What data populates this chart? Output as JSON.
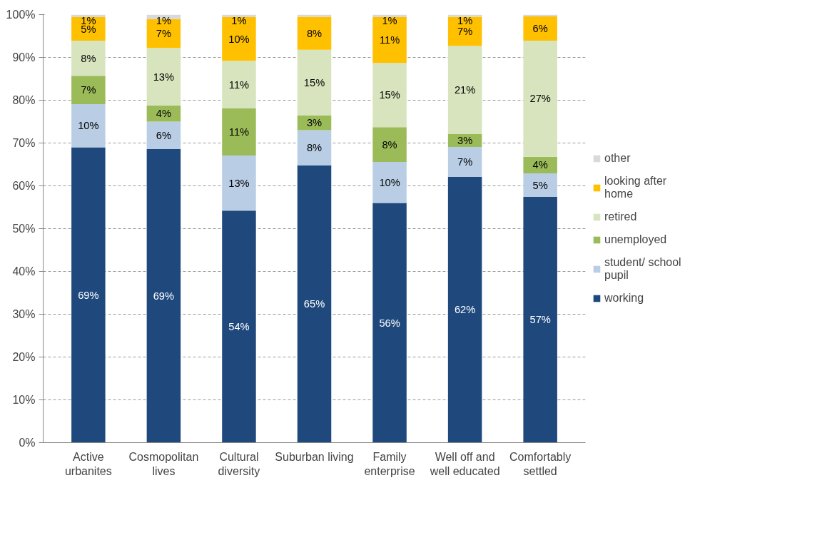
{
  "chart_data": {
    "type": "bar",
    "stacked": true,
    "categories": [
      "Active urbanites",
      "Cosmopolitan lives",
      "Cultural diversity",
      "Suburban living",
      "Family enterprise",
      "Well off and well educated",
      "Comfortably settled"
    ],
    "series": [
      {
        "name": "working",
        "color": "#1f497d",
        "values": [
          69.0,
          68.6,
          54.2,
          64.8,
          56.0,
          62.1,
          57.4
        ],
        "value_labels": [
          "69%",
          "69%",
          "54%",
          "65%",
          "56%",
          "62%",
          "57%"
        ]
      },
      {
        "name": "student/ school pupil",
        "color": "#b9cde5",
        "values": [
          10.1,
          6.4,
          12.9,
          8.2,
          9.6,
          7.0,
          5.5
        ],
        "value_labels": [
          "10%",
          "6%",
          "13%",
          "8%",
          "10%",
          "7%",
          "5%"
        ]
      },
      {
        "name": "unemployed",
        "color": "#9bbb59",
        "values": [
          6.6,
          3.8,
          11.0,
          3.4,
          8.1,
          3.0,
          3.9
        ],
        "value_labels": [
          "7%",
          "4%",
          "11%",
          "3%",
          "8%",
          "3%",
          "4%"
        ]
      },
      {
        "name": "retired",
        "color": "#d7e4bd",
        "values": [
          8.2,
          13.4,
          11.1,
          15.4,
          15.0,
          20.6,
          27.1
        ],
        "value_labels": [
          "8%",
          "13%",
          "11%",
          "15%",
          "15%",
          "21%",
          "27%"
        ]
      },
      {
        "name": "looking after home",
        "color": "#ffc000",
        "values": [
          5.5,
          6.7,
          10.2,
          7.7,
          10.7,
          6.8,
          5.7
        ],
        "value_labels": [
          "5%",
          "7%",
          "10%",
          "8%",
          "11%",
          "7%",
          "6%"
        ]
      },
      {
        "name": "other",
        "color": "#d9d9d9",
        "values": [
          0.6,
          1.1,
          0.6,
          0.5,
          0.6,
          0.5,
          0.4
        ],
        "value_labels": [
          "1%",
          "1%",
          "1%",
          null,
          "1%",
          "1%",
          null
        ]
      }
    ],
    "ylim": [
      0,
      100
    ],
    "yticks": [
      {
        "value": 0,
        "label": "0%"
      },
      {
        "value": 10,
        "label": "10%"
      },
      {
        "value": 20,
        "label": "20%"
      },
      {
        "value": 30,
        "label": "30%"
      },
      {
        "value": 40,
        "label": "40%"
      },
      {
        "value": 50,
        "label": "50%"
      },
      {
        "value": 60,
        "label": "60%"
      },
      {
        "value": 70,
        "label": "70%"
      },
      {
        "value": 80,
        "label": "80%"
      },
      {
        "value": 90,
        "label": "90%"
      },
      {
        "value": 100,
        "label": "100%"
      }
    ],
    "grid": "y",
    "legend": "right"
  }
}
